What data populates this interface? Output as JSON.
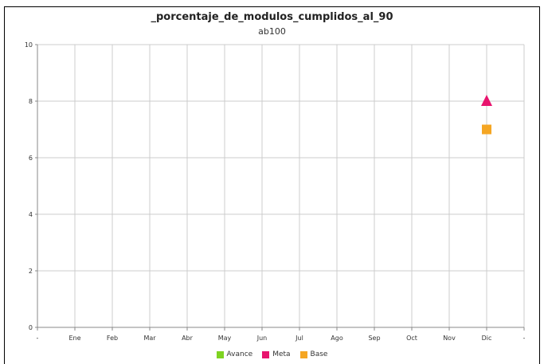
{
  "chart_data": {
    "type": "scatter",
    "title": "_porcentaje_de_modulos_cumplidos_al_90",
    "subtitle": "ab100",
    "categories": [
      "-",
      "Ene",
      "Feb",
      "Mar",
      "Abr",
      "May",
      "Jun",
      "Jul",
      "Ago",
      "Sep",
      "Oct",
      "Nov",
      "Dic",
      "-"
    ],
    "ylim": [
      0,
      10
    ],
    "yticks": [
      0,
      2,
      4,
      6,
      8,
      10
    ],
    "grid": true,
    "legend_position": "bottom",
    "series": [
      {
        "name": "Avance",
        "color": "#7ed321",
        "marker": "square",
        "points": []
      },
      {
        "name": "Meta",
        "color": "#e8146e",
        "marker": "triangle",
        "points": [
          {
            "x": "Dic",
            "y": 8
          }
        ]
      },
      {
        "name": "Base",
        "color": "#f5a623",
        "marker": "square",
        "points": [
          {
            "x": "Dic",
            "y": 7
          }
        ]
      }
    ]
  }
}
